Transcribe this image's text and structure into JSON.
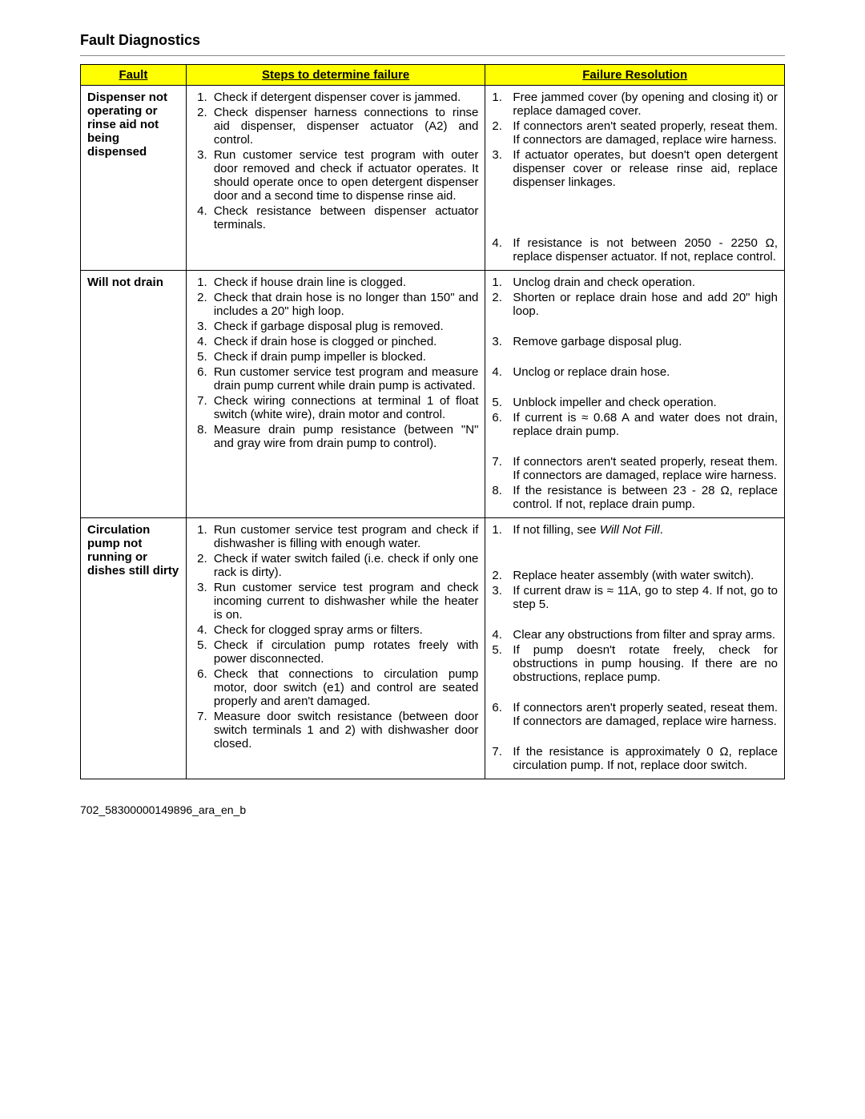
{
  "title": "Fault Diagnostics",
  "footer": "702_58300000149896_ara_en_b",
  "headers": {
    "fault": "Fault",
    "steps": "Steps to determine failure",
    "resolution": "Failure Resolution"
  },
  "rows": [
    {
      "fault": "Dispenser not operating or rinse aid not being dispensed",
      "steps": [
        "Check if detergent dispenser cover is jammed.",
        "Check dispenser harness connections to rinse aid dispenser, dispenser actuator (A2) and control.",
        "Run customer service test program with outer door removed and check if actuator operates. It should operate once to open detergent dispenser door and a second time to dispense rinse aid.",
        "Check resistance between dispenser actuator terminals."
      ],
      "resolutions": [
        {
          "n": "1.",
          "t": "Free jammed cover (by opening and closing it) or replace damaged cover."
        },
        {
          "n": "2.",
          "t": "If connectors aren't seated properly, reseat them. If connectors are damaged, replace wire harness."
        },
        {
          "n": "3.",
          "t": "If actuator operates, but doesn't open detergent dispenser cover or release rinse aid, replace dispenser linkages."
        },
        {
          "n": "",
          "t": ""
        },
        {
          "n": "",
          "t": ""
        },
        {
          "n": "",
          "t": ""
        },
        {
          "n": "4.",
          "t": "If resistance is not between 2050 - 2250 Ω, replace dispenser actuator. If not, replace control."
        }
      ]
    },
    {
      "fault": "Will not drain",
      "steps": [
        "Check if house drain line is clogged.",
        "Check that drain hose is no longer than 150\" and includes a 20\" high loop.",
        "Check if garbage disposal plug is removed.",
        "Check if drain hose is clogged or pinched.",
        "Check if drain pump impeller is blocked.",
        "Run customer service test program and measure drain pump current while drain pump is activated.",
        "Check wiring connections at terminal 1 of float switch (white wire), drain motor and control.",
        "Measure drain pump resistance (between \"N\" and gray wire from drain pump to control)."
      ],
      "resolutions": [
        {
          "n": "1.",
          "t": "Unclog drain and check operation."
        },
        {
          "n": "2.",
          "t": "Shorten or replace drain hose and add 20\" high loop."
        },
        {
          "n": "",
          "t": ""
        },
        {
          "n": "3.",
          "t": "Remove garbage disposal plug."
        },
        {
          "n": "",
          "t": ""
        },
        {
          "n": "4.",
          "t": "Unclog or replace drain hose."
        },
        {
          "n": "",
          "t": ""
        },
        {
          "n": "5.",
          "t": "Unblock impeller and check operation."
        },
        {
          "n": "6.",
          "t": "If current is ≈ 0.68 A and water does not drain, replace drain pump."
        },
        {
          "n": "",
          "t": ""
        },
        {
          "n": "7.",
          "t": "If connectors aren't seated properly, reseat them. If connectors are damaged, replace wire harness."
        },
        {
          "n": "8.",
          "t": "If the resistance is between 23 - 28 Ω, replace control. If not, replace drain pump."
        }
      ]
    },
    {
      "fault": "Circulation pump not running or dishes still dirty",
      "steps": [
        "Run customer service test program and check if dishwasher is filling with enough water.",
        "Check if water switch failed (i.e. check if only one rack is dirty).",
        "Run customer service test program and check incoming current to dishwasher while the heater is on.",
        "Check for clogged spray arms or filters.",
        "Check if circulation pump rotates freely with power disconnected.",
        "Check that connections to circulation pump motor, door switch (e1) and control are seated properly and aren't damaged.",
        "Measure door switch resistance (between door switch terminals 1 and 2) with dishwasher door closed."
      ],
      "resolutions": [
        {
          "n": "1.",
          "t": "If not filling, see <em>Will Not Fill</em>."
        },
        {
          "n": "",
          "t": ""
        },
        {
          "n": "",
          "t": ""
        },
        {
          "n": "2.",
          "t": "Replace heater assembly (with water switch)."
        },
        {
          "n": "3.",
          "t": "If current draw is ≈ 11A, go to step 4. If not, go to step 5."
        },
        {
          "n": "",
          "t": ""
        },
        {
          "n": "4.",
          "t": "Clear any obstructions from filter and spray arms."
        },
        {
          "n": "5.",
          "t": "If pump doesn't rotate freely, check for obstructions in pump housing. If there are no obstructions, replace pump."
        },
        {
          "n": "",
          "t": ""
        },
        {
          "n": "6.",
          "t": "If connectors aren't properly seated, reseat them. If connectors are damaged, replace wire harness."
        },
        {
          "n": "",
          "t": ""
        },
        {
          "n": "7.",
          "t": "If the resistance is approximately 0 Ω, replace circulation pump. If not, replace door switch."
        }
      ]
    }
  ]
}
